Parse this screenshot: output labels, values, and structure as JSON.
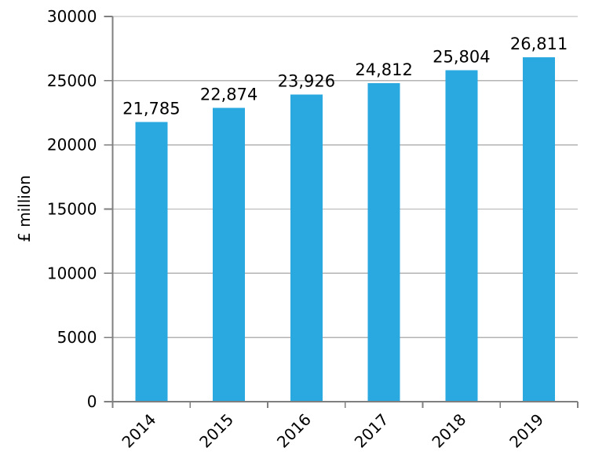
{
  "chart_data": {
    "type": "bar",
    "title": "",
    "categories": [
      "2014",
      "2015",
      "2016",
      "2017",
      "2018",
      "2019"
    ],
    "values": [
      21785,
      22874,
      23926,
      24812,
      25804,
      26811
    ],
    "value_labels": [
      "21,785",
      "22,874",
      "23,926",
      "24,812",
      "25,804",
      "26,811"
    ],
    "xlabel": "",
    "ylabel": "£ million",
    "ylim": [
      0,
      30000
    ],
    "yticks": [
      0,
      5000,
      10000,
      15000,
      20000,
      25000,
      30000
    ],
    "ytick_labels": [
      "0",
      "5000",
      "10000",
      "15000",
      "20000",
      "25000",
      "30000"
    ],
    "grid": "horizontal",
    "legend": "none",
    "colors": {
      "bar": "#29a9e0",
      "axis": "#7f7f7f",
      "gridline": "#b3b3b3",
      "text": "#000000",
      "background": "#ffffff"
    }
  }
}
